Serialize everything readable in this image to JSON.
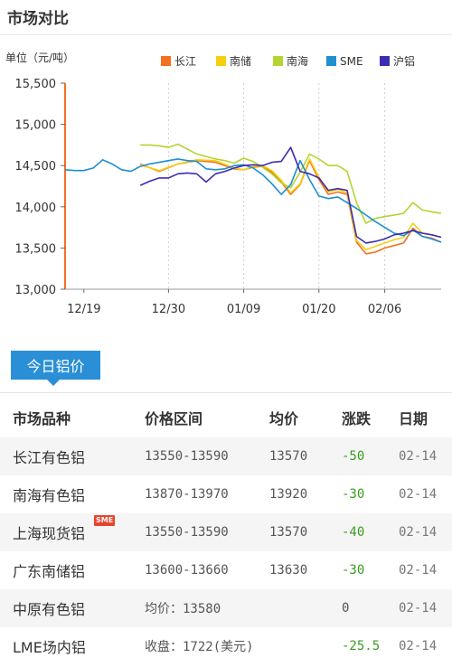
{
  "page": {
    "title": "市场对比"
  },
  "chart_data": {
    "type": "line",
    "ylabel": "单位（元/吨）",
    "ylim": [
      13000,
      15500
    ],
    "yticks": [
      13000,
      13500,
      14000,
      14500,
      15000,
      15500
    ],
    "ytick_labels": [
      "13,000",
      "13,500",
      "14,000",
      "14,500",
      "15,000",
      "15,500"
    ],
    "xlim": [
      0,
      40
    ],
    "xticks": [
      2,
      11,
      19,
      27,
      34
    ],
    "xtick_labels": [
      "12/19",
      "12/30",
      "01/09",
      "01/20",
      "02/06"
    ],
    "grid_vertical": true,
    "legend_position": "top-right",
    "series": [
      {
        "name": "长江",
        "color": "#f37021",
        "x": [
          8,
          10,
          12,
          14,
          16,
          18,
          19,
          20,
          21,
          22,
          23,
          24,
          25,
          26,
          27,
          28,
          29,
          30,
          31,
          32,
          33,
          34,
          35,
          36,
          37,
          38,
          39,
          40
        ],
        "y": [
          14520,
          14430,
          14520,
          14560,
          14540,
          14460,
          14450,
          14480,
          14490,
          14420,
          14300,
          14150,
          14270,
          14560,
          14330,
          14150,
          14180,
          14150,
          13570,
          13430,
          13450,
          13500,
          13530,
          13560,
          13740,
          13640,
          13620,
          13570
        ]
      },
      {
        "name": "南储",
        "color": "#f5d010",
        "x": [
          8,
          10,
          12,
          14,
          16,
          18,
          19,
          20,
          21,
          22,
          23,
          24,
          25,
          26,
          27,
          28,
          29,
          30,
          31,
          32,
          33,
          34,
          35,
          36,
          37,
          38,
          39,
          40
        ],
        "y": [
          14510,
          14440,
          14520,
          14570,
          14560,
          14470,
          14450,
          14490,
          14500,
          14440,
          14320,
          14170,
          14280,
          14580,
          14360,
          14180,
          14210,
          14170,
          13590,
          13480,
          13520,
          13560,
          13600,
          13630,
          13800,
          13680,
          13660,
          13630
        ]
      },
      {
        "name": "南海",
        "color": "#b5d334",
        "x": [
          8,
          9,
          10,
          11,
          12,
          13,
          14,
          16,
          17,
          18,
          19,
          20,
          21,
          22,
          23,
          24,
          25,
          26,
          27,
          28,
          29,
          30,
          31,
          32,
          33,
          34,
          35,
          36,
          37,
          38,
          39,
          40
        ],
        "y": [
          14750,
          14750,
          14740,
          14720,
          14760,
          14700,
          14640,
          14580,
          14560,
          14530,
          14590,
          14550,
          14480,
          14400,
          14290,
          14230,
          14420,
          14640,
          14580,
          14500,
          14500,
          14430,
          14050,
          13800,
          13860,
          13880,
          13900,
          13920,
          14050,
          13960,
          13940,
          13920
        ]
      },
      {
        "name": "SME",
        "color": "#1e8fd0",
        "x": [
          0,
          1,
          2,
          3,
          4,
          5,
          6,
          7,
          8,
          9,
          10,
          11,
          12,
          13,
          14,
          15,
          16,
          17,
          18,
          19,
          20,
          21,
          22,
          23,
          24,
          25,
          26,
          27,
          28,
          29,
          30,
          31,
          32,
          33,
          34,
          35,
          36,
          37,
          38,
          39,
          40
        ],
        "y": [
          14450,
          14440,
          14440,
          14470,
          14570,
          14520,
          14450,
          14430,
          14490,
          14520,
          14540,
          14560,
          14580,
          14560,
          14550,
          14460,
          14450,
          14460,
          14500,
          14510,
          14470,
          14390,
          14280,
          14150,
          14270,
          14560,
          14330,
          14130,
          14100,
          14120,
          14050,
          13980,
          13900,
          13820,
          13750,
          13680,
          13650,
          13720,
          13640,
          13610,
          13570
        ]
      },
      {
        "name": "沪铝",
        "color": "#3c2db0",
        "x": [
          8,
          9,
          10,
          11,
          12,
          13,
          14,
          15,
          16,
          17,
          18,
          19,
          20,
          21,
          22,
          23,
          24,
          25,
          26,
          27,
          28,
          29,
          30,
          31,
          32,
          33,
          34,
          35,
          36,
          37,
          38,
          39,
          40
        ],
        "y": [
          14260,
          14310,
          14350,
          14350,
          14400,
          14410,
          14400,
          14300,
          14400,
          14430,
          14470,
          14500,
          14510,
          14500,
          14540,
          14550,
          14720,
          14430,
          14400,
          14350,
          14200,
          14220,
          14200,
          13640,
          13560,
          13580,
          13610,
          13660,
          13680,
          13710,
          13680,
          13660,
          13630
        ]
      }
    ]
  },
  "today": {
    "tab_label": "今日铝价",
    "headers": {
      "name": "市场品种",
      "range": "价格区间",
      "avg": "均价",
      "change": "涨跌",
      "date": "日期"
    },
    "sme_badge": "SME",
    "rows": [
      {
        "name": "长江有色铝",
        "range": "13550-13590",
        "avg": "13570",
        "change": "-50",
        "date": "02-14"
      },
      {
        "name": "南海有色铝",
        "range": "13870-13970",
        "avg": "13920",
        "change": "-30",
        "date": "02-14"
      },
      {
        "name": "上海现货铝",
        "range": "13550-13590",
        "avg": "13570",
        "change": "-40",
        "date": "02-14"
      },
      {
        "name": "广东南储铝",
        "range": "13600-13660",
        "avg": "13630",
        "change": "-30",
        "date": "02-14"
      },
      {
        "name": "中原有色铝",
        "range": "均价：13580",
        "avg": "",
        "change": "0",
        "date": "02-14"
      },
      {
        "name": "LME场内铝",
        "range": "收盘：1722(美元)",
        "avg": "",
        "change": "-25.5",
        "date": "02-14"
      }
    ]
  }
}
